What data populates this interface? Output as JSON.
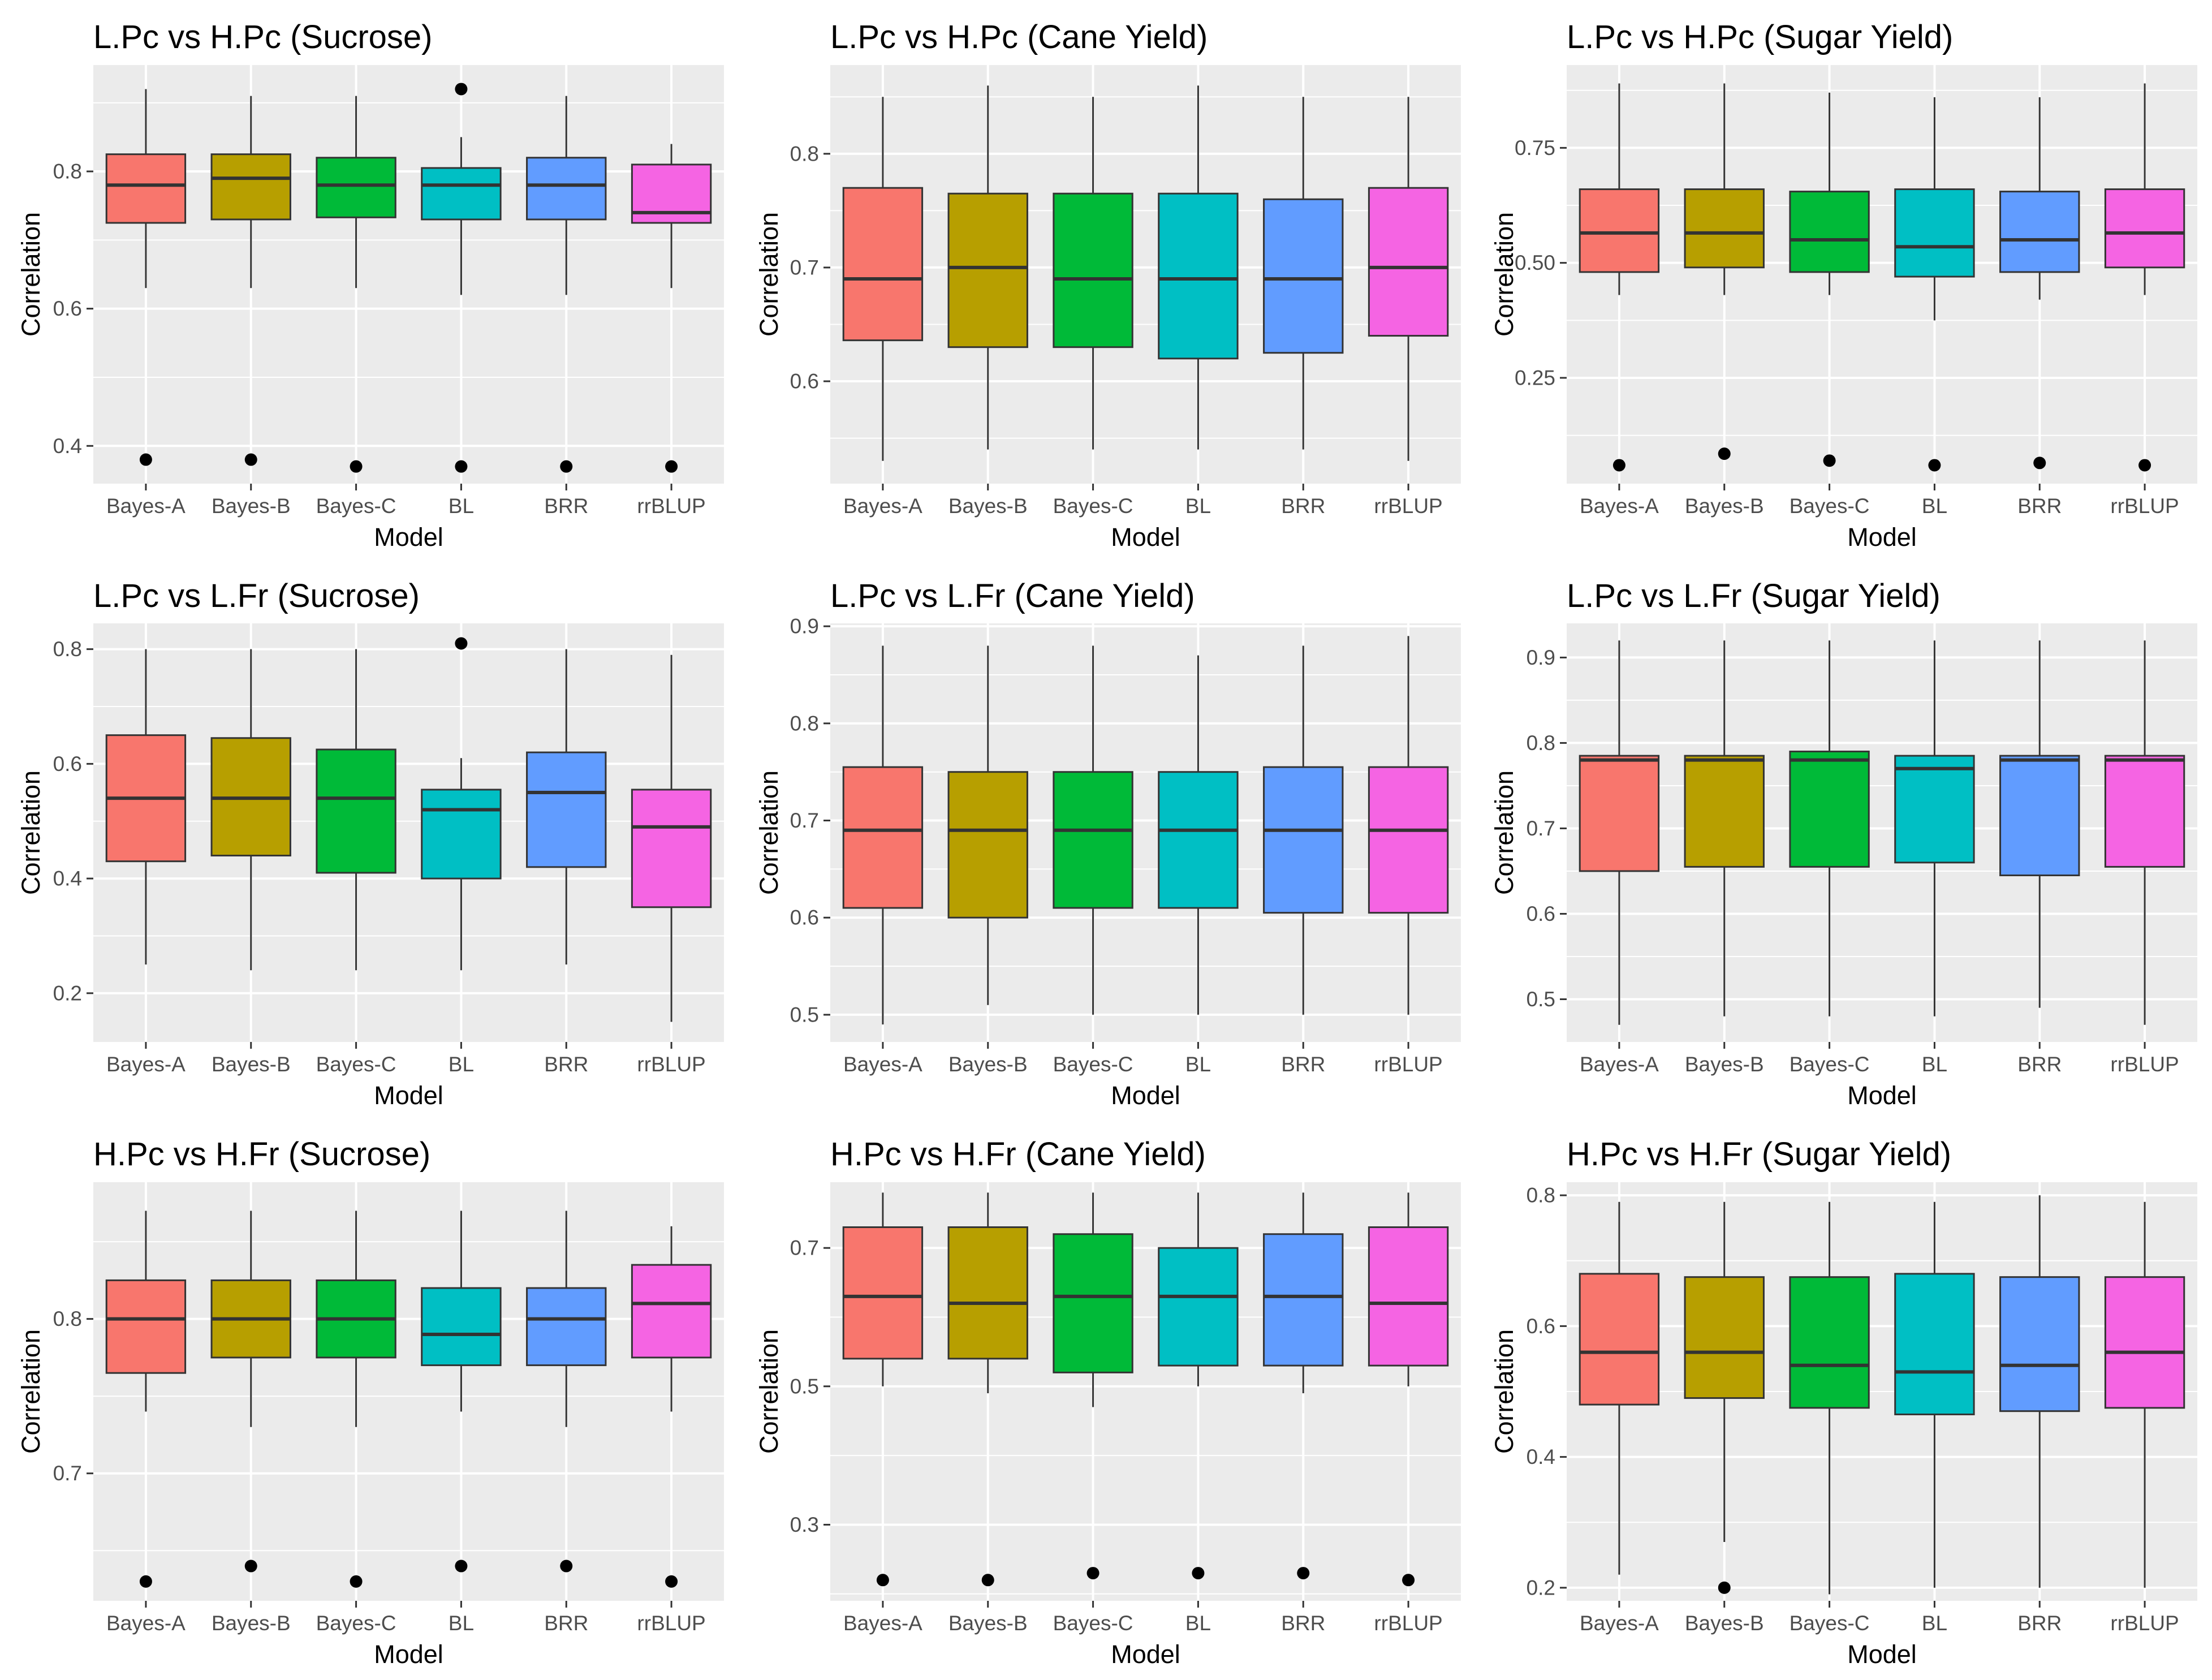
{
  "figure": {
    "xlabel": "Model",
    "ylabel": "Correlation",
    "models": [
      "Bayes-A",
      "Bayes-B",
      "Bayes-C",
      "BL",
      "BRR",
      "rrBLUP"
    ],
    "fill_colors": [
      "#F8766D",
      "#B79F00",
      "#00BA38",
      "#00BFC4",
      "#619CFF",
      "#F564E3"
    ],
    "panel_bg": "#EBEBEB",
    "grid_color": "#FFFFFF"
  },
  "chart_data": [
    {
      "type": "boxplot",
      "title": "L.Pc vs H.Pc (Sucrose)",
      "xlabel": "Model",
      "ylabel": "Correlation",
      "ylim": [
        0.345,
        0.955
      ],
      "yticks": [
        0.4,
        0.6,
        0.8
      ],
      "ytick_labels": [
        "0.4",
        "0.6",
        "0.8"
      ],
      "boxes": [
        {
          "model": "Bayes-A",
          "low": 0.63,
          "q1": 0.725,
          "median": 0.78,
          "q3": 0.825,
          "high": 0.92,
          "outliers": [
            0.38
          ]
        },
        {
          "model": "Bayes-B",
          "low": 0.63,
          "q1": 0.73,
          "median": 0.79,
          "q3": 0.825,
          "high": 0.91,
          "outliers": [
            0.38
          ]
        },
        {
          "model": "Bayes-C",
          "low": 0.63,
          "q1": 0.733,
          "median": 0.78,
          "q3": 0.82,
          "high": 0.91,
          "outliers": [
            0.37
          ]
        },
        {
          "model": "BL",
          "low": 0.62,
          "q1": 0.73,
          "median": 0.78,
          "q3": 0.805,
          "high": 0.85,
          "outliers": [
            0.37,
            0.92
          ]
        },
        {
          "model": "BRR",
          "low": 0.62,
          "q1": 0.73,
          "median": 0.78,
          "q3": 0.82,
          "high": 0.91,
          "outliers": [
            0.37
          ]
        },
        {
          "model": "rrBLUP",
          "low": 0.63,
          "q1": 0.725,
          "median": 0.74,
          "q3": 0.81,
          "high": 0.84,
          "outliers": [
            0.37
          ]
        }
      ]
    },
    {
      "type": "boxplot",
      "title": "L.Pc vs H.Pc (Cane Yield)",
      "xlabel": "Model",
      "ylabel": "Correlation",
      "ylim": [
        0.51,
        0.878
      ],
      "yticks": [
        0.6,
        0.7,
        0.8
      ],
      "ytick_labels": [
        "0.6",
        "0.7",
        "0.8"
      ],
      "boxes": [
        {
          "model": "Bayes-A",
          "low": 0.53,
          "q1": 0.636,
          "median": 0.69,
          "q3": 0.77,
          "high": 0.85,
          "outliers": []
        },
        {
          "model": "Bayes-B",
          "low": 0.54,
          "q1": 0.63,
          "median": 0.7,
          "q3": 0.765,
          "high": 0.86,
          "outliers": []
        },
        {
          "model": "Bayes-C",
          "low": 0.54,
          "q1": 0.63,
          "median": 0.69,
          "q3": 0.765,
          "high": 0.85,
          "outliers": []
        },
        {
          "model": "BL",
          "low": 0.54,
          "q1": 0.62,
          "median": 0.69,
          "q3": 0.765,
          "high": 0.86,
          "outliers": []
        },
        {
          "model": "BRR",
          "low": 0.54,
          "q1": 0.625,
          "median": 0.69,
          "q3": 0.76,
          "high": 0.85,
          "outliers": []
        },
        {
          "model": "rrBLUP",
          "low": 0.53,
          "q1": 0.64,
          "median": 0.7,
          "q3": 0.77,
          "high": 0.85,
          "outliers": []
        }
      ]
    },
    {
      "type": "boxplot",
      "title": "L.Pc vs H.Pc (Sugar Yield)",
      "xlabel": "Model",
      "ylabel": "Correlation",
      "ylim": [
        0.02,
        0.93
      ],
      "yticks": [
        0.25,
        0.5,
        0.75
      ],
      "ytick_labels": [
        "0.25",
        "0.50",
        "0.75"
      ],
      "boxes": [
        {
          "model": "Bayes-A",
          "low": 0.43,
          "q1": 0.48,
          "median": 0.565,
          "q3": 0.66,
          "high": 0.89,
          "outliers": [
            0.06
          ]
        },
        {
          "model": "Bayes-B",
          "low": 0.43,
          "q1": 0.49,
          "median": 0.565,
          "q3": 0.66,
          "high": 0.89,
          "outliers": [
            0.085
          ]
        },
        {
          "model": "Bayes-C",
          "low": 0.43,
          "q1": 0.48,
          "median": 0.55,
          "q3": 0.655,
          "high": 0.87,
          "outliers": [
            0.07
          ]
        },
        {
          "model": "BL",
          "low": 0.375,
          "q1": 0.47,
          "median": 0.535,
          "q3": 0.66,
          "high": 0.86,
          "outliers": [
            0.06
          ]
        },
        {
          "model": "BRR",
          "low": 0.42,
          "q1": 0.48,
          "median": 0.55,
          "q3": 0.655,
          "high": 0.86,
          "outliers": [
            0.065
          ]
        },
        {
          "model": "rrBLUP",
          "low": 0.43,
          "q1": 0.49,
          "median": 0.565,
          "q3": 0.66,
          "high": 0.89,
          "outliers": [
            0.06
          ]
        }
      ]
    },
    {
      "type": "boxplot",
      "title": "L.Pc vs L.Fr (Sucrose)",
      "xlabel": "Model",
      "ylabel": "Correlation",
      "ylim": [
        0.115,
        0.845
      ],
      "yticks": [
        0.2,
        0.4,
        0.6,
        0.8
      ],
      "ytick_labels": [
        "0.2",
        "0.4",
        "0.6",
        "0.8"
      ],
      "boxes": [
        {
          "model": "Bayes-A",
          "low": 0.25,
          "q1": 0.43,
          "median": 0.54,
          "q3": 0.65,
          "high": 0.8,
          "outliers": []
        },
        {
          "model": "Bayes-B",
          "low": 0.24,
          "q1": 0.44,
          "median": 0.54,
          "q3": 0.645,
          "high": 0.8,
          "outliers": []
        },
        {
          "model": "Bayes-C",
          "low": 0.24,
          "q1": 0.41,
          "median": 0.54,
          "q3": 0.625,
          "high": 0.8,
          "outliers": []
        },
        {
          "model": "BL",
          "low": 0.24,
          "q1": 0.4,
          "median": 0.52,
          "q3": 0.555,
          "high": 0.61,
          "outliers": [
            0.81
          ]
        },
        {
          "model": "BRR",
          "low": 0.25,
          "q1": 0.42,
          "median": 0.55,
          "q3": 0.62,
          "high": 0.8,
          "outliers": []
        },
        {
          "model": "rrBLUP",
          "low": 0.15,
          "q1": 0.35,
          "median": 0.49,
          "q3": 0.555,
          "high": 0.79,
          "outliers": []
        }
      ]
    },
    {
      "type": "boxplot",
      "title": "L.Pc vs L.Fr (Cane Yield)",
      "xlabel": "Model",
      "ylabel": "Correlation",
      "ylim": [
        0.472,
        0.903
      ],
      "yticks": [
        0.5,
        0.6,
        0.7,
        0.8,
        0.9
      ],
      "ytick_labels": [
        "0.5",
        "0.6",
        "0.7",
        "0.8",
        "0.9"
      ],
      "boxes": [
        {
          "model": "Bayes-A",
          "low": 0.49,
          "q1": 0.61,
          "median": 0.69,
          "q3": 0.755,
          "high": 0.88,
          "outliers": []
        },
        {
          "model": "Bayes-B",
          "low": 0.51,
          "q1": 0.6,
          "median": 0.69,
          "q3": 0.75,
          "high": 0.88,
          "outliers": []
        },
        {
          "model": "Bayes-C",
          "low": 0.5,
          "q1": 0.61,
          "median": 0.69,
          "q3": 0.75,
          "high": 0.88,
          "outliers": []
        },
        {
          "model": "BL",
          "low": 0.5,
          "q1": 0.61,
          "median": 0.69,
          "q3": 0.75,
          "high": 0.87,
          "outliers": []
        },
        {
          "model": "BRR",
          "low": 0.5,
          "q1": 0.605,
          "median": 0.69,
          "q3": 0.755,
          "high": 0.88,
          "outliers": []
        },
        {
          "model": "rrBLUP",
          "low": 0.5,
          "q1": 0.605,
          "median": 0.69,
          "q3": 0.755,
          "high": 0.89,
          "outliers": []
        }
      ]
    },
    {
      "type": "boxplot",
      "title": "L.Pc vs L.Fr (Sugar Yield)",
      "xlabel": "Model",
      "ylabel": "Correlation",
      "ylim": [
        0.45,
        0.94
      ],
      "yticks": [
        0.5,
        0.6,
        0.7,
        0.8,
        0.9
      ],
      "ytick_labels": [
        "0.5",
        "0.6",
        "0.7",
        "0.8",
        "0.9"
      ],
      "boxes": [
        {
          "model": "Bayes-A",
          "low": 0.47,
          "q1": 0.65,
          "median": 0.78,
          "q3": 0.785,
          "high": 0.92,
          "outliers": []
        },
        {
          "model": "Bayes-B",
          "low": 0.48,
          "q1": 0.655,
          "median": 0.78,
          "q3": 0.785,
          "high": 0.92,
          "outliers": []
        },
        {
          "model": "Bayes-C",
          "low": 0.48,
          "q1": 0.655,
          "median": 0.78,
          "q3": 0.79,
          "high": 0.92,
          "outliers": []
        },
        {
          "model": "BL",
          "low": 0.48,
          "q1": 0.66,
          "median": 0.77,
          "q3": 0.785,
          "high": 0.92,
          "outliers": []
        },
        {
          "model": "BRR",
          "low": 0.49,
          "q1": 0.645,
          "median": 0.78,
          "q3": 0.785,
          "high": 0.92,
          "outliers": []
        },
        {
          "model": "rrBLUP",
          "low": 0.47,
          "q1": 0.655,
          "median": 0.78,
          "q3": 0.785,
          "high": 0.92,
          "outliers": []
        }
      ]
    },
    {
      "type": "boxplot",
      "title": "H.Pc vs H.Fr (Sucrose)",
      "xlabel": "Model",
      "ylabel": "Correlation",
      "ylim": [
        0.6175,
        0.8885
      ],
      "yticks": [
        0.7,
        0.8
      ],
      "ytick_labels": [
        "0.7",
        "0.8"
      ],
      "boxes": [
        {
          "model": "Bayes-A",
          "low": 0.74,
          "q1": 0.765,
          "median": 0.8,
          "q3": 0.825,
          "high": 0.87,
          "outliers": [
            0.63
          ]
        },
        {
          "model": "Bayes-B",
          "low": 0.73,
          "q1": 0.775,
          "median": 0.8,
          "q3": 0.825,
          "high": 0.87,
          "outliers": [
            0.64
          ]
        },
        {
          "model": "Bayes-C",
          "low": 0.73,
          "q1": 0.775,
          "median": 0.8,
          "q3": 0.825,
          "high": 0.87,
          "outliers": [
            0.63
          ]
        },
        {
          "model": "BL",
          "low": 0.74,
          "q1": 0.77,
          "median": 0.79,
          "q3": 0.82,
          "high": 0.87,
          "outliers": [
            0.64
          ]
        },
        {
          "model": "BRR",
          "low": 0.73,
          "q1": 0.77,
          "median": 0.8,
          "q3": 0.82,
          "high": 0.87,
          "outliers": [
            0.64
          ]
        },
        {
          "model": "rrBLUP",
          "low": 0.74,
          "q1": 0.775,
          "median": 0.81,
          "q3": 0.835,
          "high": 0.86,
          "outliers": [
            0.63
          ]
        }
      ]
    },
    {
      "type": "boxplot",
      "title": "H.Pc vs H.Fr (Cane Yield)",
      "xlabel": "Model",
      "ylabel": "Correlation",
      "ylim": [
        0.19,
        0.795
      ],
      "yticks": [
        0.3,
        0.5,
        0.7
      ],
      "ytick_labels": [
        "0.3",
        "0.5",
        "0.7"
      ],
      "boxes": [
        {
          "model": "Bayes-A",
          "low": 0.5,
          "q1": 0.54,
          "median": 0.63,
          "q3": 0.73,
          "high": 0.78,
          "outliers": [
            0.22
          ]
        },
        {
          "model": "Bayes-B",
          "low": 0.49,
          "q1": 0.54,
          "median": 0.62,
          "q3": 0.73,
          "high": 0.78,
          "outliers": [
            0.22
          ]
        },
        {
          "model": "Bayes-C",
          "low": 0.47,
          "q1": 0.52,
          "median": 0.63,
          "q3": 0.72,
          "high": 0.78,
          "outliers": [
            0.23
          ]
        },
        {
          "model": "BL",
          "low": 0.5,
          "q1": 0.53,
          "median": 0.63,
          "q3": 0.7,
          "high": 0.78,
          "outliers": [
            0.23
          ]
        },
        {
          "model": "BRR",
          "low": 0.49,
          "q1": 0.53,
          "median": 0.63,
          "q3": 0.72,
          "high": 0.78,
          "outliers": [
            0.23
          ]
        },
        {
          "model": "rrBLUP",
          "low": 0.5,
          "q1": 0.53,
          "median": 0.62,
          "q3": 0.73,
          "high": 0.78,
          "outliers": [
            0.22
          ]
        }
      ]
    },
    {
      "type": "boxplot",
      "title": "H.Pc vs H.Fr (Sugar Yield)",
      "xlabel": "Model",
      "ylabel": "Correlation",
      "ylim": [
        0.18,
        0.82
      ],
      "yticks": [
        0.2,
        0.4,
        0.6,
        0.8
      ],
      "ytick_labels": [
        "0.2",
        "0.4",
        "0.6",
        "0.8"
      ],
      "boxes": [
        {
          "model": "Bayes-A",
          "low": 0.22,
          "q1": 0.48,
          "median": 0.56,
          "q3": 0.68,
          "high": 0.79,
          "outliers": []
        },
        {
          "model": "Bayes-B",
          "low": 0.27,
          "q1": 0.49,
          "median": 0.56,
          "q3": 0.675,
          "high": 0.79,
          "outliers": [
            0.2
          ]
        },
        {
          "model": "Bayes-C",
          "low": 0.19,
          "q1": 0.475,
          "median": 0.54,
          "q3": 0.675,
          "high": 0.79,
          "outliers": []
        },
        {
          "model": "BL",
          "low": 0.2,
          "q1": 0.465,
          "median": 0.53,
          "q3": 0.68,
          "high": 0.79,
          "outliers": []
        },
        {
          "model": "BRR",
          "low": 0.2,
          "q1": 0.47,
          "median": 0.54,
          "q3": 0.675,
          "high": 0.8,
          "outliers": []
        },
        {
          "model": "rrBLUP",
          "low": 0.2,
          "q1": 0.475,
          "median": 0.56,
          "q3": 0.675,
          "high": 0.79,
          "outliers": []
        }
      ]
    }
  ]
}
